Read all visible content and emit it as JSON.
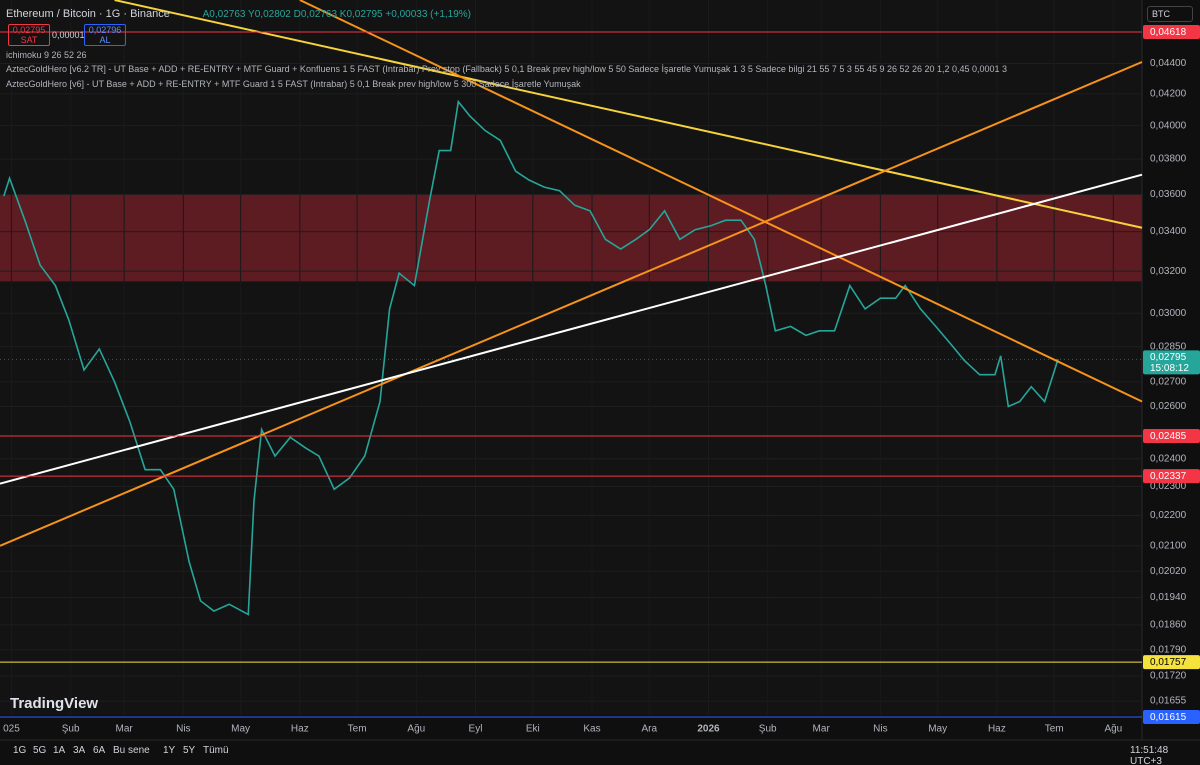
{
  "ui": {
    "symbol": "Ethereum / Bitcoin · 1G · Binance",
    "ohlc": "A0,02763 Y0,02802 D0,02763 K0,02795 +0,00033 (+1,19%)",
    "sell_price": "0,02795",
    "sell_label": "SAT",
    "spread": "0,00001",
    "buy_price": "0,02796",
    "buy_label": "AL",
    "indicators": [
      "ichimoku 9 26 52 26",
      "AztecGoldHero [v6.2 TR] - UT Base + ADD + RE-ENTRY + MTF Guard + Konfluens 1 5 FAST (Intrabar) Prev stop (Fallback) 5 0,1 Break prev high/low 5 50 Sadece İşaretle Yumuşak 1 3 5 Sadece bilgi 21 55 7 5 3 55 45 9 26 52 26 20 1,2 0,45 0,0001 3",
      "AztecGoldHero [v6] - UT Base + ADD + RE-ENTRY + MTF Guard 1 5 FAST (Intrabar) 5 0,1 Break prev high/low 5 300 Sadece İşaretle Yumuşak"
    ],
    "currency": "BTC",
    "logo": "TradingView",
    "ranges": [
      "1G",
      "5G",
      "1A",
      "3A",
      "6A",
      "Bu sene",
      "1Y",
      "5Y",
      "Tümü"
    ],
    "clock": "11:51:48 UTC+3"
  },
  "chart_data": {
    "type": "line",
    "log_scale": true,
    "grid": true,
    "xlim": [
      -6,
      592
    ],
    "ylim": [
      0.0162,
      0.0485
    ],
    "xticks": [
      {
        "value": 0,
        "label": "025"
      },
      {
        "value": 31,
        "label": "Şub"
      },
      {
        "value": 59,
        "label": "Mar"
      },
      {
        "value": 90,
        "label": "Nis"
      },
      {
        "value": 120,
        "label": "May"
      },
      {
        "value": 151,
        "label": "Haz"
      },
      {
        "value": 181,
        "label": "Tem"
      },
      {
        "value": 212,
        "label": "Ağu"
      },
      {
        "value": 243,
        "label": "Eyl"
      },
      {
        "value": 273,
        "label": "Eki"
      },
      {
        "value": 304,
        "label": "Kas"
      },
      {
        "value": 334,
        "label": "Ara"
      },
      {
        "value": 365,
        "label": "2026"
      },
      {
        "value": 396,
        "label": "Şub"
      },
      {
        "value": 424,
        "label": "Mar"
      },
      {
        "value": 455,
        "label": "Nis"
      },
      {
        "value": 485,
        "label": "May"
      },
      {
        "value": 516,
        "label": "Haz"
      },
      {
        "value": 546,
        "label": "Tem"
      },
      {
        "value": 577,
        "label": "Ağu"
      }
    ],
    "yticks": [
      {
        "value": 0.044,
        "label": "0,04400"
      },
      {
        "value": 0.042,
        "label": "0,04200"
      },
      {
        "value": 0.04,
        "label": "0,04000"
      },
      {
        "value": 0.038,
        "label": "0,03800"
      },
      {
        "value": 0.036,
        "label": "0,03600"
      },
      {
        "value": 0.034,
        "label": "0,03400"
      },
      {
        "value": 0.032,
        "label": "0,03200"
      },
      {
        "value": 0.03,
        "label": "0,03000"
      },
      {
        "value": 0.0285,
        "label": "0,02850"
      },
      {
        "value": 0.027,
        "label": "0,02700"
      },
      {
        "value": 0.026,
        "label": "0,02600"
      },
      {
        "value": 0.024,
        "label": "0,02400"
      },
      {
        "value": 0.023,
        "label": "0,02300"
      },
      {
        "value": 0.022,
        "label": "0,02200"
      },
      {
        "value": 0.021,
        "label": "0,02100"
      },
      {
        "value": 0.0202,
        "label": "0,02020"
      },
      {
        "value": 0.0194,
        "label": "0,01940"
      },
      {
        "value": 0.0186,
        "label": "0,01860"
      },
      {
        "value": 0.0179,
        "label": "0,01790"
      },
      {
        "value": 0.0172,
        "label": "0,01720"
      },
      {
        "value": 0.01655,
        "label": "0,01655"
      }
    ],
    "series": [
      {
        "color": "#26a69a",
        "x": [
          -4,
          -1,
          7,
          15,
          23,
          30,
          38,
          46,
          54,
          62,
          70,
          78,
          85,
          93,
          99,
          106,
          114,
          124,
          127,
          131,
          138,
          146,
          154,
          161,
          169,
          177,
          185,
          193,
          198,
          203,
          211,
          219,
          224,
          230,
          234,
          240,
          248,
          256,
          264,
          271,
          279,
          287,
          295,
          303,
          311,
          319,
          327,
          334,
          342,
          350,
          358,
          366,
          374,
          382,
          389,
          395,
          400,
          408,
          416,
          423,
          431,
          439,
          447,
          455,
          463,
          468,
          476,
          484,
          492,
          499,
          507,
          515,
          518,
          522,
          528,
          534,
          541,
          548
        ],
        "values": [
          0.0359,
          0.0369,
          0.0346,
          0.0323,
          0.0313,
          0.0297,
          0.0275,
          0.0284,
          0.027,
          0.0254,
          0.0236,
          0.0236,
          0.0229,
          0.0205,
          0.0193,
          0.019,
          0.0192,
          0.0189,
          0.0225,
          0.0251,
          0.0241,
          0.0248,
          0.0244,
          0.0241,
          0.0229,
          0.0233,
          0.0241,
          0.0262,
          0.0302,
          0.0319,
          0.0313,
          0.0357,
          0.0385,
          0.0385,
          0.0415,
          0.0406,
          0.0397,
          0.0391,
          0.0373,
          0.0368,
          0.0364,
          0.0362,
          0.0354,
          0.0351,
          0.0336,
          0.0331,
          0.0336,
          0.0341,
          0.0351,
          0.0336,
          0.0341,
          0.0343,
          0.0346,
          0.0346,
          0.0336,
          0.0313,
          0.0292,
          0.0294,
          0.029,
          0.0292,
          0.0292,
          0.0313,
          0.0302,
          0.0307,
          0.0307,
          0.0313,
          0.0302,
          0.0294,
          0.0286,
          0.0279,
          0.0273,
          0.0273,
          0.0281,
          0.026,
          0.0262,
          0.0268,
          0.0262,
          0.02795
        ],
        "last_label": "0,02795",
        "countdown": "15:08:12"
      }
    ],
    "zones": [
      {
        "from": 0.0315,
        "to": 0.036,
        "color": "#6b1d26"
      }
    ],
    "levels": [
      {
        "value": 0.04618,
        "label": "0,04618",
        "color": "#f23645"
      },
      {
        "value": 0.02485,
        "label": "0,02485",
        "color": "#f23645"
      },
      {
        "value": 0.02337,
        "label": "0,02337",
        "color": "#f23645"
      },
      {
        "value": 0.01757,
        "label": "0,01757",
        "color": "#f5e23c"
      },
      {
        "value": 0.01615,
        "label": "0,01615",
        "color": "#2962ff"
      }
    ],
    "trend_lines": [
      {
        "color": "#f5d33c",
        "x": [
          54,
          592
        ],
        "y": [
          0.0485,
          0.0342
        ]
      },
      {
        "color": "#f7931a",
        "x": [
          151,
          592
        ],
        "y": [
          0.0485,
          0.0262
        ]
      },
      {
        "color": "#f7931a",
        "x": [
          -6,
          592
        ],
        "y": [
          0.021,
          0.0441
        ]
      },
      {
        "color": "#ffffff",
        "x": [
          -6,
          592
        ],
        "y": [
          0.0231,
          0.0371
        ]
      }
    ]
  }
}
